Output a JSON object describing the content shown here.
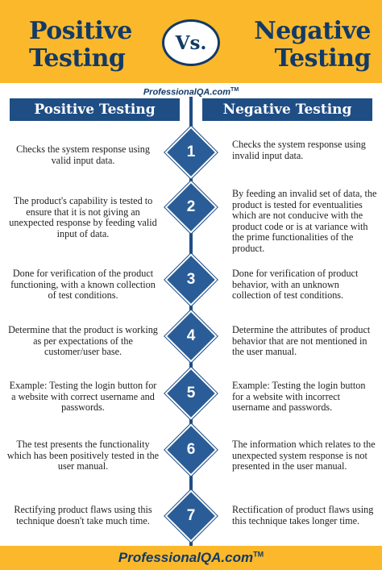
{
  "header": {
    "title_left_line1": "Positive",
    "title_left_line2": "Testing",
    "vs": "Vs.",
    "title_right_line1": "Negative",
    "title_right_line2": "Testing"
  },
  "brand": {
    "name": "ProfessionalQA.com",
    "tm": "TM"
  },
  "columns": {
    "positive": "Positive Testing",
    "negative": "Negative Testing"
  },
  "rows": [
    {
      "num": "1",
      "positive": "Checks the system response using valid input data.",
      "negative": "Checks the system response using invalid input data."
    },
    {
      "num": "2",
      "positive": "The product's capability is tested to ensure that it is not giving an unexpected response by feeding valid input of data.",
      "negative": "By feeding an invalid set of data, the product is tested for eventualities which are not conducive with the product code or is at variance with the prime functionalities of the product."
    },
    {
      "num": "3",
      "positive": "Done for verification of the product functioning, with a known collection of test conditions.",
      "negative": "Done for verification of product behavior, with an unknown collection of test conditions."
    },
    {
      "num": "4",
      "positive": "Determine that the product is working as per expectations of the customer/user base.",
      "negative": "Determine the attributes of product behavior that are not mentioned in the user manual."
    },
    {
      "num": "5",
      "positive": "Example: Testing the login button for a website with correct username and passwords.",
      "negative": "Example: Testing the login button for a website with incorrect username and passwords."
    },
    {
      "num": "6",
      "positive": "The test presents the functionality which has been positively tested in the user manual.",
      "negative": "The information which relates to the unexpected system response is not presented in the user manual."
    },
    {
      "num": "7",
      "positive": "Rectifying product flaws using this technique doesn't take much time.",
      "negative": "Rectification of product flaws using this technique takes longer time."
    }
  ],
  "colors": {
    "accent": "#fbb82b",
    "navy": "#1f4e85",
    "title": "#123a66"
  }
}
